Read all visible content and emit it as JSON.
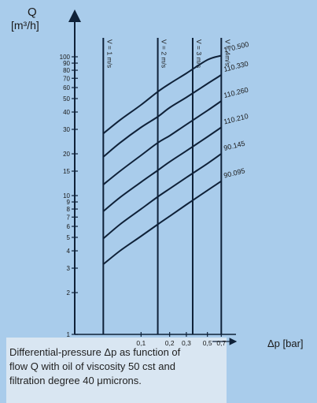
{
  "chart_data": {
    "type": "line",
    "title": "",
    "ylabel_symbol": "Q",
    "ylabel_unit": "[m³/h]",
    "xlabel": "Δp [bar]",
    "ylim": [
      1,
      100
    ],
    "xlim": [
      0.02,
      1.0
    ],
    "y_scale": "log",
    "x_scale": "log",
    "y_ticks": [
      1,
      2,
      3,
      4,
      5,
      6,
      7,
      8,
      9,
      10,
      15,
      20,
      30,
      40,
      50,
      60,
      70,
      80,
      90,
      100
    ],
    "y_tick_labels": [
      "1",
      "2",
      "3",
      "4",
      "5",
      "6",
      "7",
      "8",
      "9",
      "10",
      "15",
      "20",
      "30",
      "40",
      "50",
      "60",
      "70",
      "80",
      "90",
      "100"
    ],
    "x_ticks": [
      0.1,
      0.2,
      0.3,
      0.5,
      0.7
    ],
    "x_tick_labels": [
      "0,1",
      "0,2",
      "0,3",
      "0,5",
      "0,7"
    ],
    "velocity_lines": [
      {
        "label": "V = 1 m/s",
        "x": 0.04
      },
      {
        "label": "V = 2 m/s",
        "x": 0.15
      },
      {
        "label": "V = 3 m/s",
        "x": 0.35
      },
      {
        "label": "V = 4m/s",
        "x": 0.7
      }
    ],
    "series": [
      {
        "name": "170.500",
        "x": [
          0.04,
          0.06,
          0.1,
          0.15,
          0.2,
          0.3,
          0.5,
          0.7
        ],
        "y": [
          28,
          35,
          45,
          56,
          64,
          76,
          95,
          102
        ]
      },
      {
        "name": "110.330",
        "x": [
          0.04,
          0.06,
          0.1,
          0.15,
          0.2,
          0.3,
          0.5,
          0.7
        ],
        "y": [
          19,
          24,
          31,
          37,
          43,
          51,
          64,
          74
        ]
      },
      {
        "name": "110.260",
        "x": [
          0.04,
          0.06,
          0.1,
          0.15,
          0.2,
          0.3,
          0.5,
          0.7
        ],
        "y": [
          12,
          15,
          19.5,
          24,
          27,
          32.5,
          41,
          48
        ]
      },
      {
        "name": "110.210",
        "x": [
          0.04,
          0.06,
          0.1,
          0.15,
          0.2,
          0.3,
          0.5,
          0.7
        ],
        "y": [
          7.7,
          9.7,
          12.5,
          15.2,
          17.5,
          21,
          26.5,
          31
        ]
      },
      {
        "name": "90.145",
        "x": [
          0.04,
          0.06,
          0.1,
          0.15,
          0.2,
          0.3,
          0.5,
          0.7
        ],
        "y": [
          4.9,
          6.2,
          8,
          9.8,
          11.2,
          13.5,
          17,
          20
        ]
      },
      {
        "name": "90.095",
        "x": [
          0.04,
          0.06,
          0.1,
          0.15,
          0.2,
          0.3,
          0.5,
          0.7
        ],
        "y": [
          3.2,
          4,
          5.1,
          6.2,
          7.1,
          8.6,
          10.9,
          12.7
        ]
      }
    ],
    "grid": false,
    "caption": "Differential-pressure Δp as function of\nflow Q with oil of viscosity 50 cst and\nfiltration degree 40 μmicrons."
  },
  "colors": {
    "background": "#a9cceb",
    "lines": "#0f2138",
    "caption_box": "#d9e6f2"
  }
}
